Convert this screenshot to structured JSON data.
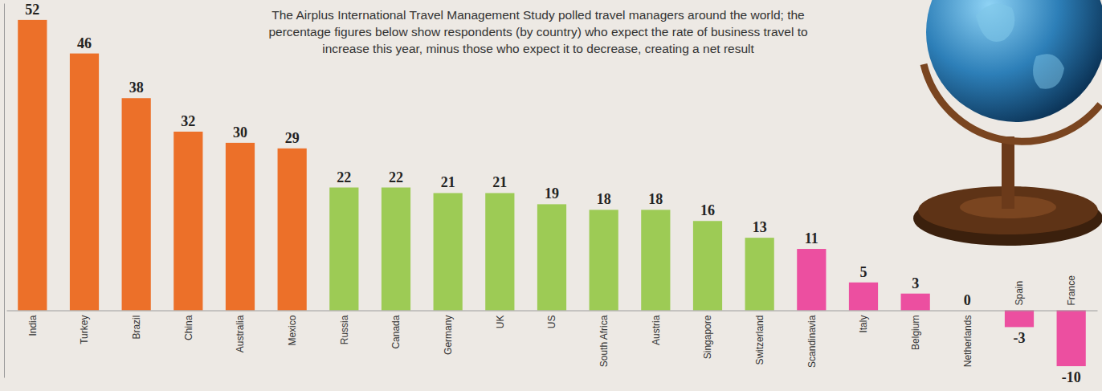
{
  "chart_data": {
    "type": "bar",
    "title": "The Airplus International Travel Management Study polled travel managers around the world; the percentage figures below show respondents (by country) who expect the rate of business travel to increase this year, minus those who expect it to decrease, creating a net result",
    "categories": [
      "India",
      "Turkey",
      "Brazil",
      "China",
      "Australia",
      "Mexico",
      "Russia",
      "Canada",
      "Germany",
      "UK",
      "US",
      "South Africa",
      "Austria",
      "Singapore",
      "Switzerland",
      "Scandinavia",
      "Italy",
      "Belgium",
      "Netherlands",
      "Spain",
      "France"
    ],
    "values": [
      52,
      46,
      38,
      32,
      30,
      29,
      22,
      22,
      21,
      21,
      19,
      18,
      18,
      16,
      13,
      11,
      5,
      3,
      0,
      -3,
      -10
    ],
    "colors": [
      "#ec7029",
      "#ec7029",
      "#ec7029",
      "#ec7029",
      "#ec7029",
      "#ec7029",
      "#9dcb55",
      "#9dcb55",
      "#9dcb55",
      "#9dcb55",
      "#9dcb55",
      "#9dcb55",
      "#9dcb55",
      "#9dcb55",
      "#9dcb55",
      "#ec4fa0",
      "#ec4fa0",
      "#ec4fa0",
      "#ec4fa0",
      "#ec4fa0",
      "#ec4fa0"
    ],
    "ylim": [
      -12,
      55
    ],
    "yticks": [],
    "data_labels": true,
    "tick_labels": "x"
  }
}
